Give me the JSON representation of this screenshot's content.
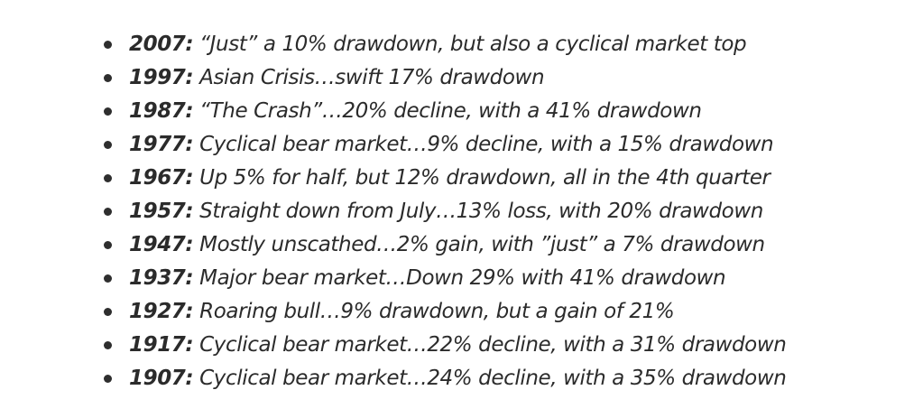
{
  "items": [
    {
      "year": "2007:",
      "text": " “Just” a 10% drawdown, but also a cyclical market top"
    },
    {
      "year": "1997:",
      "text": "  Asian Crisis…swift 17% drawdown"
    },
    {
      "year": "1987:",
      "text": " “The Crash”…20% decline, with a 41% drawdown"
    },
    {
      "year": "1977:",
      "text": " Cyclical bear market…9% decline, with a 15% drawdown"
    },
    {
      "year": "1967:",
      "text": " Up 5% for half, but 12% drawdown, all in the 4th quarter"
    },
    {
      "year": "1957:",
      "text": " Straight down from July…13% loss, with 20% drawdown"
    },
    {
      "year": "1947:",
      "text": " Mostly unscathed…2% gain, with ”just” a 7% drawdown"
    },
    {
      "year": "1937:",
      "text": " Major bear market…Down 29% with 41% drawdown"
    },
    {
      "year": "1927:",
      "text": " Roaring bull…9% drawdown, but a gain of 21%"
    },
    {
      "year": "1917:",
      "text": " Cyclical bear market…22% decline, with a 31% drawdown"
    },
    {
      "year": "1907:",
      "text": " Cyclical bear market…24% decline, with a 35% drawdown"
    }
  ]
}
